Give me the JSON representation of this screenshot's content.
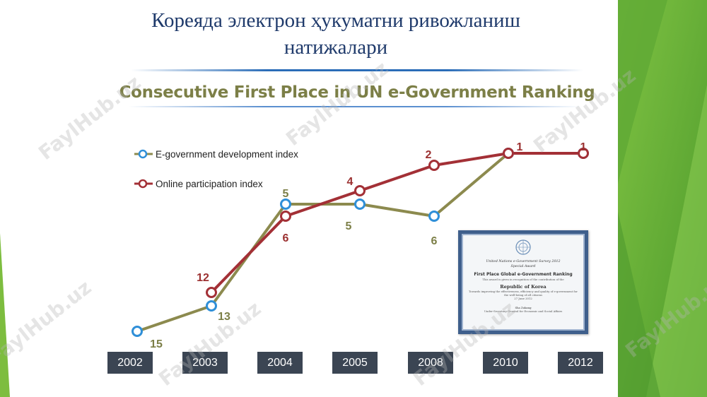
{
  "slide": {
    "title": "Кореяда электрон ҳукуматни ривожланиш натижалари",
    "chart_heading": "Consecutive First Place in UN e-Government Ranking"
  },
  "watermark_text": "FaylHub.uz",
  "colors": {
    "egov_line": "#8c8a4e",
    "egov_marker": "#2f8fd8",
    "online_line": "#a33036",
    "online_marker": "#a33036",
    "rank_label_egov": "#7c7f47",
    "rank_label_online": "#9b3030",
    "accent_green": "#6db33f"
  },
  "legend": [
    {
      "label": "E-government development index",
      "series": "egov"
    },
    {
      "label": "Online participation index",
      "series": "online"
    }
  ],
  "chart_data": {
    "type": "line",
    "categories": [
      "2002",
      "2003",
      "2004",
      "2005",
      "2008",
      "2010",
      "2012"
    ],
    "y_reversed": true,
    "ylim": [
      16,
      1
    ],
    "grid": false,
    "legend_position": "top-left",
    "series": [
      {
        "name": "E-government development index",
        "key": "egov",
        "values": [
          15,
          13,
          5,
          5,
          6,
          1,
          1
        ],
        "labels": [
          "15",
          "13",
          "5",
          "5",
          "6",
          "",
          ""
        ]
      },
      {
        "name": "Online participation index",
        "key": "online",
        "values": [
          null,
          12,
          6,
          4,
          2,
          1,
          1
        ],
        "labels": [
          "",
          "12",
          "6",
          "4",
          "2",
          "1",
          "1"
        ]
      }
    ]
  },
  "certificate": {
    "line1": "United Nations e-Government Survey 2012",
    "line2": "Special Award",
    "main": "First Place Global e-Government Ranking",
    "line3": "This award is given in recognition of the contribution of the",
    "country": "Republic of Korea",
    "line4": "Towards improving the effectiveness, efficiency and quality of e-government for the well-being of all citizens",
    "date": "27 June 2012",
    "signer": "Sha Zukang",
    "signer_title": "Under-Secretary-General for Economic and Social Affairs"
  }
}
